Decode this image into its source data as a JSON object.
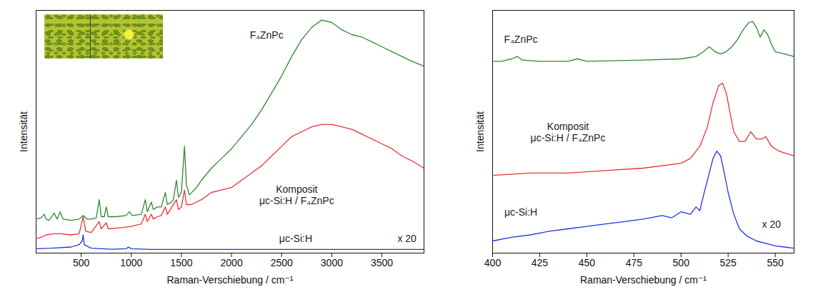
{
  "chart_data": [
    {
      "type": "line",
      "xlabel": "Raman-Verschiebung / cm⁻¹",
      "ylabel": "Intensität",
      "xlim": [
        50,
        3920
      ],
      "xticks": [
        500,
        1000,
        1500,
        2000,
        2500,
        3000,
        3500
      ],
      "ylim": [
        0,
        100
      ],
      "tick_labels": "x",
      "series": [
        {
          "name": "F₄ZnPc",
          "color": "#2f8a34",
          "x": [
            50,
            100,
            130,
            150,
            180,
            230,
            260,
            290,
            320,
            400,
            480,
            520,
            560,
            600,
            650,
            680,
            700,
            730,
            750,
            770,
            850,
            950,
            980,
            1010,
            1100,
            1140,
            1160,
            1200,
            1220,
            1260,
            1300,
            1340,
            1360,
            1400,
            1420,
            1450,
            1470,
            1500,
            1530,
            1550,
            1580,
            1650,
            1700,
            1800,
            1900,
            2000,
            2100,
            2200,
            2300,
            2400,
            2500,
            2600,
            2700,
            2800,
            2900,
            3000,
            3100,
            3200,
            3300,
            3400,
            3500,
            3600,
            3700,
            3800,
            3920
          ],
          "values": [
            14,
            14.5,
            16,
            14,
            13.5,
            16.5,
            14,
            17,
            14,
            13.5,
            14,
            15.5,
            14,
            14,
            14.5,
            22,
            15,
            15,
            19,
            15,
            15,
            15.5,
            17,
            15.5,
            16,
            22,
            17,
            21,
            18,
            19,
            19,
            25,
            20,
            21,
            22,
            30,
            23,
            25,
            44,
            28,
            24,
            27,
            30,
            35,
            39,
            43,
            48,
            53,
            59,
            66,
            73,
            81,
            88,
            93,
            96,
            95,
            92,
            90,
            89,
            87,
            85,
            83,
            81,
            79,
            77
          ]
        },
        {
          "name": "Komposit\nμc-Si:H / F₄ZnPc",
          "color": "#e8333a",
          "x": [
            50,
            100,
            150,
            230,
            290,
            400,
            480,
            520,
            545,
            600,
            680,
            700,
            750,
            770,
            900,
            1000,
            1100,
            1140,
            1160,
            1200,
            1220,
            1260,
            1300,
            1340,
            1360,
            1450,
            1470,
            1500,
            1530,
            1550,
            1600,
            1700,
            1800,
            1900,
            2000,
            2100,
            2200,
            2300,
            2400,
            2500,
            2600,
            2700,
            2800,
            2900,
            3000,
            3100,
            3200,
            3300,
            3400,
            3500,
            3600,
            3700,
            3800,
            3920
          ],
          "values": [
            6,
            6.5,
            7.5,
            8,
            8,
            7.5,
            8,
            15,
            9,
            8.5,
            13,
            10,
            12.5,
            10,
            10.5,
            11,
            12,
            16,
            13,
            16,
            14,
            15,
            15.5,
            19,
            16,
            22,
            18,
            19,
            26,
            20,
            20,
            22,
            25,
            26,
            27,
            30,
            33,
            36,
            40,
            44,
            48,
            50,
            52,
            53,
            53,
            52,
            51,
            49,
            47,
            45,
            43,
            40,
            38,
            35
          ]
        },
        {
          "name": "μc-Si:H",
          "color": "#1f35e0",
          "x": [
            50,
            200,
            400,
            480,
            510,
            520,
            530,
            600,
            800,
            950,
            970,
            1000,
            1200,
            2000,
            3000,
            3920
          ],
          "values": [
            1.8,
            2,
            2.5,
            3.5,
            5,
            7.5,
            3.5,
            2,
            1.6,
            1.8,
            2.5,
            1.8,
            1.5,
            1.5,
            1.5,
            1.5
          ]
        }
      ],
      "annotations": [
        {
          "text": "F₄ZnPc",
          "x": 2350,
          "y": 90
        },
        {
          "text": "Komposit\nμc-Si:H / F₄ZnPc",
          "x": 2650,
          "y": 24
        },
        {
          "text": "μc-Si:H",
          "x": 2640,
          "y": 6
        },
        {
          "text": "x 20",
          "x": 3750,
          "y": 6
        }
      ]
    },
    {
      "type": "line",
      "xlabel": "Raman-Verschiebung / cm⁻¹",
      "ylabel": "Intensität",
      "xlim": [
        400,
        560
      ],
      "xticks": [
        400,
        425,
        450,
        475,
        500,
        525,
        550
      ],
      "ylim": [
        0,
        100
      ],
      "tick_labels": "x",
      "series": [
        {
          "name": "F₄ZnPc",
          "color": "#2f8a34",
          "x": [
            400,
            405,
            410,
            413,
            416,
            425,
            440,
            445,
            450,
            480,
            500,
            508,
            512,
            515,
            518,
            521,
            524,
            527,
            530,
            533,
            536,
            538,
            540,
            542,
            544,
            546,
            548,
            550,
            555,
            560
          ],
          "values": [
            79,
            79,
            80,
            81,
            79.5,
            79,
            79,
            80,
            79,
            79.5,
            80,
            81,
            83,
            85,
            83,
            82,
            83,
            85,
            88,
            92,
            95,
            95.5,
            93,
            89,
            92,
            90,
            86,
            83,
            82,
            81
          ]
        },
        {
          "name": "Komposit\nμc-Si:H / F₄ZnPc",
          "color": "#e8333a",
          "x": [
            400,
            420,
            440,
            460,
            480,
            500,
            505,
            510,
            514,
            517,
            520,
            522,
            524,
            526,
            528,
            531,
            534,
            537,
            540,
            543,
            545,
            548,
            552,
            556,
            560
          ],
          "values": [
            32,
            33,
            33,
            34,
            35,
            37,
            39,
            44,
            52,
            62,
            69,
            70,
            66,
            58,
            50,
            46,
            46,
            50,
            47,
            47,
            48,
            44,
            42,
            41,
            40
          ]
        },
        {
          "name": "μc-Si:H",
          "color": "#1f35e0",
          "x": [
            400,
            410,
            420,
            430,
            440,
            450,
            460,
            470,
            480,
            490,
            495,
            500,
            505,
            508,
            510,
            512,
            515,
            517,
            519,
            521,
            523,
            525,
            528,
            531,
            535,
            540,
            545,
            550,
            555,
            560
          ],
          "values": [
            5,
            6.5,
            7.5,
            9,
            10,
            11,
            12,
            13,
            14,
            15.5,
            14.5,
            17,
            16,
            19,
            17.5,
            24,
            33,
            39,
            42,
            40,
            33,
            25,
            16,
            10,
            7,
            5,
            4,
            3,
            2.5,
            2
          ]
        }
      ],
      "annotations": [
        {
          "text": "F₄ZnPc",
          "x": 415,
          "y": 88
        },
        {
          "text": "Komposit\nμc-Si:H / F₄ZnPc",
          "x": 440,
          "y": 50
        },
        {
          "text": "μc-Si:H",
          "x": 415,
          "y": 17
        },
        {
          "text": "x 20",
          "x": 548,
          "y": 12
        }
      ]
    }
  ]
}
